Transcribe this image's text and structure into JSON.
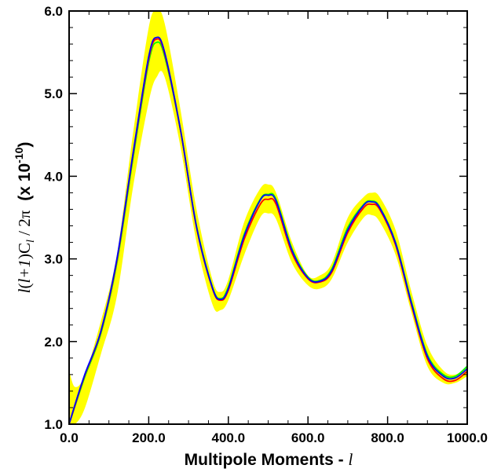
{
  "chart_data": {
    "type": "line",
    "title": "",
    "xlabel": {
      "text": "Multipole Moments - ",
      "symbol": "l"
    },
    "ylabel": {
      "ell": "l",
      "open1": "(",
      "ell2": "l",
      "plus": "+1",
      "close1": ")C",
      "sub": "l",
      "slash": " / 2π",
      "factor": "(x 10",
      "exponent": "-10",
      "factor_close": ")"
    },
    "xlim": [
      0,
      1000
    ],
    "ylim": [
      1.0,
      6.0
    ],
    "x_ticks": [
      0,
      200,
      400,
      600,
      800,
      1000
    ],
    "x_tick_labels": [
      "0.0",
      "200.0",
      "400.0",
      "600.0",
      "800.0",
      "1000.0"
    ],
    "y_ticks": [
      1,
      2,
      3,
      4,
      5,
      6
    ],
    "y_tick_labels": [
      "1.0",
      "2.0",
      "3.0",
      "4.0",
      "5.0",
      "6.0"
    ],
    "grid": false,
    "legend": "none",
    "band": {
      "color": "#ffff00",
      "x": [
        0,
        15,
        40,
        80,
        120,
        160,
        200,
        220,
        240,
        280,
        320,
        360,
        380,
        400,
        440,
        480,
        500,
        520,
        560,
        600,
        630,
        660,
        700,
        740,
        760,
        780,
        820,
        860,
        900,
        940,
        970,
        1000
      ],
      "upper": [
        1.65,
        1.45,
        1.6,
        2.25,
        3.05,
        4.5,
        5.8,
        6.0,
        5.85,
        4.8,
        3.6,
        2.75,
        2.6,
        2.75,
        3.45,
        3.85,
        3.9,
        3.8,
        3.2,
        2.8,
        2.8,
        2.95,
        3.5,
        3.75,
        3.8,
        3.75,
        3.35,
        2.6,
        1.95,
        1.65,
        1.6,
        1.7
      ],
      "lower": [
        1.0,
        1.0,
        1.2,
        1.85,
        2.55,
        3.85,
        4.9,
        5.2,
        5.2,
        4.35,
        3.2,
        2.45,
        2.38,
        2.5,
        3.05,
        3.5,
        3.55,
        3.48,
        2.95,
        2.68,
        2.64,
        2.76,
        3.2,
        3.5,
        3.53,
        3.45,
        3.05,
        2.35,
        1.7,
        1.5,
        1.5,
        1.58
      ]
    },
    "x": [
      0,
      15,
      40,
      80,
      120,
      160,
      200,
      220,
      240,
      280,
      320,
      360,
      380,
      400,
      440,
      480,
      500,
      520,
      560,
      600,
      630,
      660,
      700,
      740,
      760,
      780,
      820,
      860,
      900,
      940,
      970,
      1000
    ],
    "series": [
      {
        "color": "#00ff00",
        "values": [
          1.0,
          1.22,
          1.58,
          2.1,
          2.95,
          4.2,
          5.38,
          5.62,
          5.45,
          4.55,
          3.4,
          2.66,
          2.52,
          2.66,
          3.3,
          3.72,
          3.78,
          3.72,
          3.12,
          2.78,
          2.74,
          2.88,
          3.38,
          3.66,
          3.7,
          3.63,
          3.2,
          2.48,
          1.84,
          1.6,
          1.58,
          1.7
        ]
      },
      {
        "color": "#ff0000",
        "values": [
          1.0,
          1.23,
          1.6,
          2.12,
          2.98,
          4.24,
          5.42,
          5.66,
          5.48,
          4.55,
          3.38,
          2.64,
          2.5,
          2.62,
          3.24,
          3.66,
          3.72,
          3.66,
          3.07,
          2.76,
          2.72,
          2.84,
          3.32,
          3.62,
          3.66,
          3.6,
          3.17,
          2.44,
          1.79,
          1.55,
          1.53,
          1.64
        ]
      },
      {
        "color": "#0000ff",
        "values": [
          1.0,
          1.24,
          1.61,
          2.13,
          3.0,
          4.26,
          5.45,
          5.68,
          5.5,
          4.56,
          3.39,
          2.65,
          2.51,
          2.64,
          3.28,
          3.71,
          3.77,
          3.7,
          3.1,
          2.77,
          2.73,
          2.86,
          3.35,
          3.65,
          3.69,
          3.62,
          3.19,
          2.46,
          1.82,
          1.58,
          1.56,
          1.67
        ]
      }
    ]
  }
}
